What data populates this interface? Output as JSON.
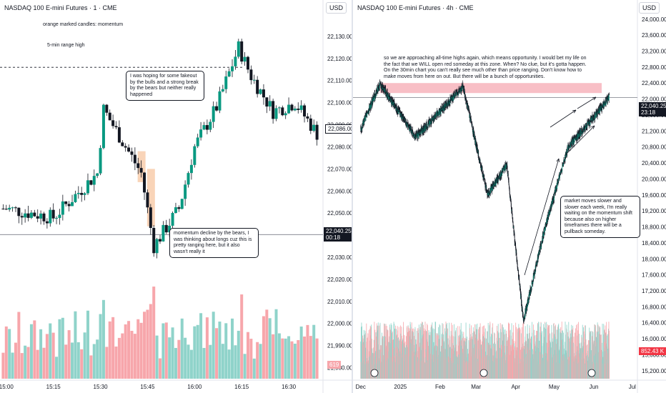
{
  "left": {
    "title": "NASDAQ 100 E-mini Futures · 1 · CME",
    "currency": "USD",
    "note_orange": "orange marked candles: momentum",
    "range_high_label": "5-min range high",
    "callout_top": "I was hoping for some fakeout by the bulls and a strong break by the bears but neither really happened",
    "callout_bottom": "momentum decline by the bears, I was thinking about longs cuz this is pretty ranging here, but it also wasn't really it",
    "last_price": "22,040.25",
    "countdown": "00:18",
    "current_close_tag": "22,086.00",
    "volume_tag": "619",
    "y_ticks": [
      "22,130.00",
      "22,120.00",
      "22,110.00",
      "22,100.00",
      "22,090.00",
      "22,080.00",
      "22,070.00",
      "22,060.00",
      "22,050.00",
      "22,040.00",
      "22,030.00",
      "22,020.00",
      "22,010.00",
      "22,000.00",
      "21,990.00",
      "21,980.00"
    ],
    "x_ticks": [
      "15:00",
      "15:15",
      "15:30",
      "15:45",
      "16:00",
      "16:15",
      "16:30"
    ]
  },
  "right": {
    "title": "NASDAQ 100 E-mini Futures · 4h · CME",
    "currency": "USD",
    "note_top": "so we are approaching all-time highs again, which means opportunity. I would bet my life on the fact that we WILL open red someday at this zone. When? No clue, but it's gotta happen. On the 30min chart you can't really see much other than price ranging. Don't know how to make moves from here on out. But there will be a bunch of opportunities.",
    "callout_right": "market moves slower and slower each week, I'm really waiting on the momentum shift  because also on higher timeframes there will be a pullback someday.",
    "last_price": "22,040.25",
    "countdown": "23:18",
    "volume_tag": "852.43 K",
    "y_ticks": [
      "24,000.00",
      "23,600.00",
      "23,200.00",
      "22,800.00",
      "22,400.00",
      "22,000.00",
      "21,600.00",
      "21,200.00",
      "20,800.00",
      "20,400.00",
      "20,000.00",
      "19,600.00",
      "19,200.00",
      "18,800.00",
      "18,400.00",
      "18,000.00",
      "17,600.00",
      "17,200.00",
      "16,800.00",
      "16,400.00",
      "16,000.00",
      "15,600.00",
      "15,200.00"
    ],
    "x_ticks": [
      "Dec",
      "2025",
      "Feb",
      "Mar",
      "Apr",
      "May",
      "Jun",
      "Jul"
    ]
  },
  "colors": {
    "up": "#089981",
    "down": "#f23645",
    "up_vol": "#8fd3ca",
    "down_vol": "#f7a6ab",
    "wick": "#131722",
    "zone": "#f7b8c0",
    "orange_mark": "#f7c9a6"
  },
  "chart_data": [
    {
      "type": "candlestick",
      "title": "NASDAQ 100 E-mini Futures · 1 · CME",
      "timeframe": "1 minute",
      "x_range": [
        "14:58",
        "16:40"
      ],
      "ylim": [
        21975,
        22140
      ],
      "last_price": 22040.25,
      "reference_line": 22040.25,
      "range_high": 22116,
      "key_points": [
        {
          "time": "15:00",
          "price": 22052
        },
        {
          "time": "15:15",
          "price": 22048
        },
        {
          "time": "15:29",
          "price": 22068
        },
        {
          "time": "15:31",
          "price": 22097
        },
        {
          "time": "15:43",
          "price": 22068
        },
        {
          "time": "15:47",
          "price": 22035
        },
        {
          "time": "15:55",
          "price": 22052
        },
        {
          "time": "16:00",
          "price": 22080
        },
        {
          "time": "16:07",
          "price": 22098
        },
        {
          "time": "16:14",
          "price": 22125
        },
        {
          "time": "16:18",
          "price": 22112
        },
        {
          "time": "16:25",
          "price": 22096
        },
        {
          "time": "16:32",
          "price": 22100
        },
        {
          "time": "16:39",
          "price": 22086
        }
      ],
      "volume": {
        "max_approx": 1250,
        "last": 619
      }
    },
    {
      "type": "candlestick",
      "title": "NASDAQ 100 E-mini Futures · 4h · CME",
      "timeframe": "4 hours",
      "x_range": [
        "Dec 2024",
        "Jun 2025"
      ],
      "ylim": [
        15000,
        24300
      ],
      "last_price": 22040.25,
      "resistance_zone": [
        22150,
        22400
      ],
      "key_points": [
        {
          "date": "2024-12-01",
          "price": 21250
        },
        {
          "date": "2024-12-16",
          "price": 22380
        },
        {
          "date": "2025-01-13",
          "price": 21050
        },
        {
          "date": "2025-02-19",
          "price": 22300
        },
        {
          "date": "2025-03-10",
          "price": 19600
        },
        {
          "date": "2025-03-25",
          "price": 20350
        },
        {
          "date": "2025-04-07",
          "price": 16450
        },
        {
          "date": "2025-04-24",
          "price": 18800
        },
        {
          "date": "2025-05-12",
          "price": 20800
        },
        {
          "date": "2025-06-05",
          "price": 21700
        },
        {
          "date": "2025-06-13",
          "price": 22040
        }
      ],
      "volume": {
        "last": "852.43 K"
      }
    }
  ]
}
